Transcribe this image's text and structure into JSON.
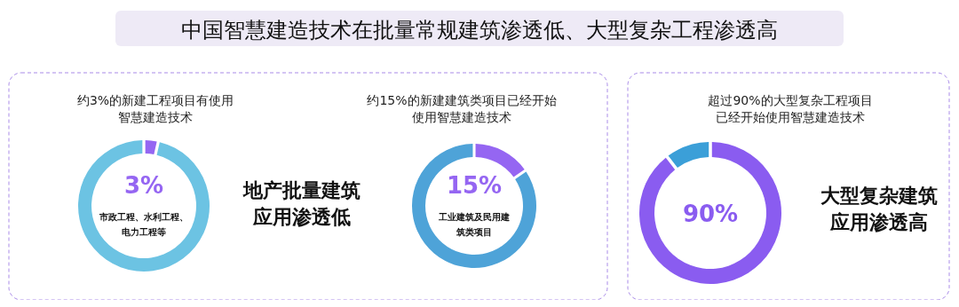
{
  "chart_data": [
    {
      "type": "other",
      "title": "中国智慧建造技术在批量常规建筑渗透低、大型复杂工程渗透高"
    },
    {
      "type": "donut",
      "title": "约3%的新建工程项目有使用智慧建造技术",
      "categories": [
        null,
        null
      ],
      "values": [
        3,
        97
      ],
      "colors": [
        "#9566f2",
        "#6cc3e3"
      ],
      "value_labels": [
        "3%",
        null
      ],
      "annotations": [
        "市政工程、水利工程、电力工程等"
      ]
    },
    {
      "type": "other",
      "title": "地产批量建筑应用渗透低"
    },
    {
      "type": "donut",
      "title": "约15%的新建建筑类项目已经开始使用智慧建造技术",
      "categories": [
        null,
        null
      ],
      "values": [
        15,
        85
      ],
      "colors": [
        "#9566f2",
        "#4ea3d8"
      ],
      "value_labels": [
        "15%",
        null
      ],
      "annotations": [
        "工业建筑及民用建筑类项目"
      ]
    },
    {
      "type": "donut",
      "title": "超过90%的大型复杂工程项目已经开始使用智慧建造技术",
      "categories": [
        null,
        null
      ],
      "values": [
        90,
        10
      ],
      "colors": [
        "#8a5cf0",
        "#3b9fd8"
      ],
      "value_labels": [
        "90%",
        null
      ]
    },
    {
      "type": "other",
      "title": "大型复杂建筑应用渗透高"
    }
  ]
}
